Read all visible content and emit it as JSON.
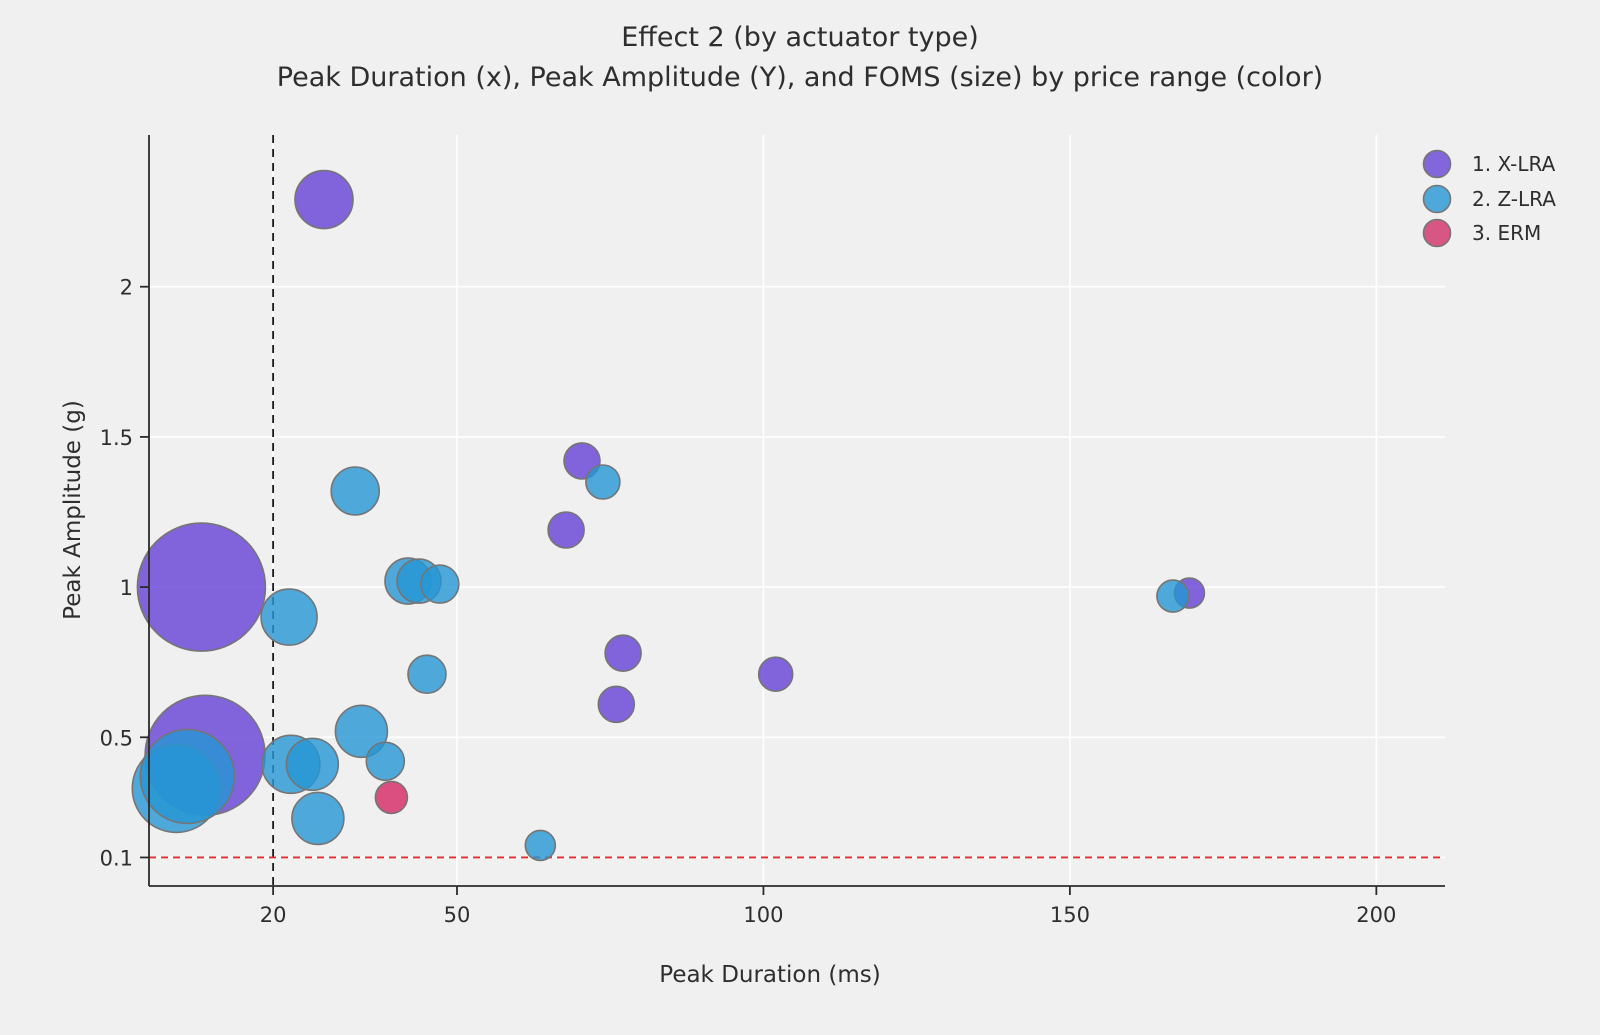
{
  "title": "Effect 2 (by actuator type)",
  "subtitle": "Peak Duration (x), Peak Amplitude (Y), and FOMS (size) by price range (color)",
  "colors": {
    "background": "#f0f0f0",
    "gridline": "#ffffff",
    "spine": "#2b2b2b",
    "tick": "#2b2b2b",
    "vline_color": "#1a1a1a",
    "hline_color": "#e52b2b",
    "bubble_stroke": "#757575"
  },
  "chart_data": {
    "type": "scatter",
    "variant": "bubble",
    "title": "Effect 2 (by actuator type)",
    "subtitle": "Peak Duration (x), Peak Amplitude (Y), and FOMS (size) by price range (color)",
    "xlabel": "Peak Duration (ms)",
    "ylabel": "Peak Amplitude (g)",
    "grid": true,
    "legend_position": "top-right",
    "x_domain": [
      -0.25,
      211.2
    ],
    "y_domain": [
      0.005,
      2.505
    ],
    "x_ticks": [
      {
        "value": 20,
        "label": "20"
      },
      {
        "value": 50,
        "label": "50"
      },
      {
        "value": 100,
        "label": "100"
      },
      {
        "value": 150,
        "label": "150"
      },
      {
        "value": 200,
        "label": "200"
      }
    ],
    "y_ticks": [
      {
        "value": 2,
        "label": "2"
      },
      {
        "value": 1.5,
        "label": "1.5"
      },
      {
        "value": 1,
        "label": "1"
      },
      {
        "value": 0.5,
        "label": "0.5"
      },
      {
        "value": 0.1,
        "label": "0.1"
      }
    ],
    "reference_lines": [
      {
        "orientation": "vertical",
        "at": 20,
        "style": "dashed",
        "color": "#1a1a1a"
      },
      {
        "orientation": "horizontal",
        "at": 0.1,
        "style": "dashed",
        "color": "#e52b2b"
      }
    ],
    "series": [
      {
        "name": "1. X-LRA",
        "fill": "#6540d6",
        "fill_opacity": 0.8,
        "swatch": "#8266db",
        "points": [
          {
            "x": 28.3,
            "y": 2.29,
            "r": 29
          },
          {
            "x": 70.4,
            "y": 1.42,
            "r": 18
          },
          {
            "x": 67.8,
            "y": 1.19,
            "r": 18
          },
          {
            "x": 8.3,
            "y": 1.0,
            "r": 64
          },
          {
            "x": 77.1,
            "y": 0.78,
            "r": 18
          },
          {
            "x": 76.0,
            "y": 0.61,
            "r": 18
          },
          {
            "x": 102.0,
            "y": 0.71,
            "r": 17
          },
          {
            "x": 169.5,
            "y": 0.98,
            "r": 15
          },
          {
            "x": 8.9,
            "y": 0.44,
            "r": 60
          }
        ]
      },
      {
        "name": "2. Z-LRA",
        "fill": "#2596d4",
        "fill_opacity": 0.8,
        "swatch": "#4fa8da",
        "points": [
          {
            "x": 33.4,
            "y": 1.32,
            "r": 24
          },
          {
            "x": 73.8,
            "y": 1.35,
            "r": 17
          },
          {
            "x": 42.0,
            "y": 1.02,
            "r": 23
          },
          {
            "x": 43.8,
            "y": 1.02,
            "r": 22
          },
          {
            "x": 47.2,
            "y": 1.01,
            "r": 19
          },
          {
            "x": 22.6,
            "y": 0.9,
            "r": 28
          },
          {
            "x": 45.1,
            "y": 0.71,
            "r": 19
          },
          {
            "x": 166.8,
            "y": 0.97,
            "r": 16
          },
          {
            "x": 4.2,
            "y": 0.33,
            "r": 44
          },
          {
            "x": 6.0,
            "y": 0.37,
            "r": 47
          },
          {
            "x": 34.4,
            "y": 0.52,
            "r": 26
          },
          {
            "x": 22.9,
            "y": 0.41,
            "r": 29
          },
          {
            "x": 26.4,
            "y": 0.41,
            "r": 26
          },
          {
            "x": 38.3,
            "y": 0.42,
            "r": 19
          },
          {
            "x": 27.3,
            "y": 0.23,
            "r": 26
          },
          {
            "x": 63.6,
            "y": 0.14,
            "r": 15
          }
        ]
      },
      {
        "name": "3. ERM",
        "fill": "#d6336c",
        "fill_opacity": 0.85,
        "swatch": "#d75684",
        "points": [
          {
            "x": 39.3,
            "y": 0.3,
            "r": 16
          }
        ]
      }
    ]
  },
  "legend": {
    "entries": [
      {
        "label": "1. X-LRA"
      },
      {
        "label": "2. Z-LRA"
      },
      {
        "label": "3. ERM"
      }
    ]
  }
}
